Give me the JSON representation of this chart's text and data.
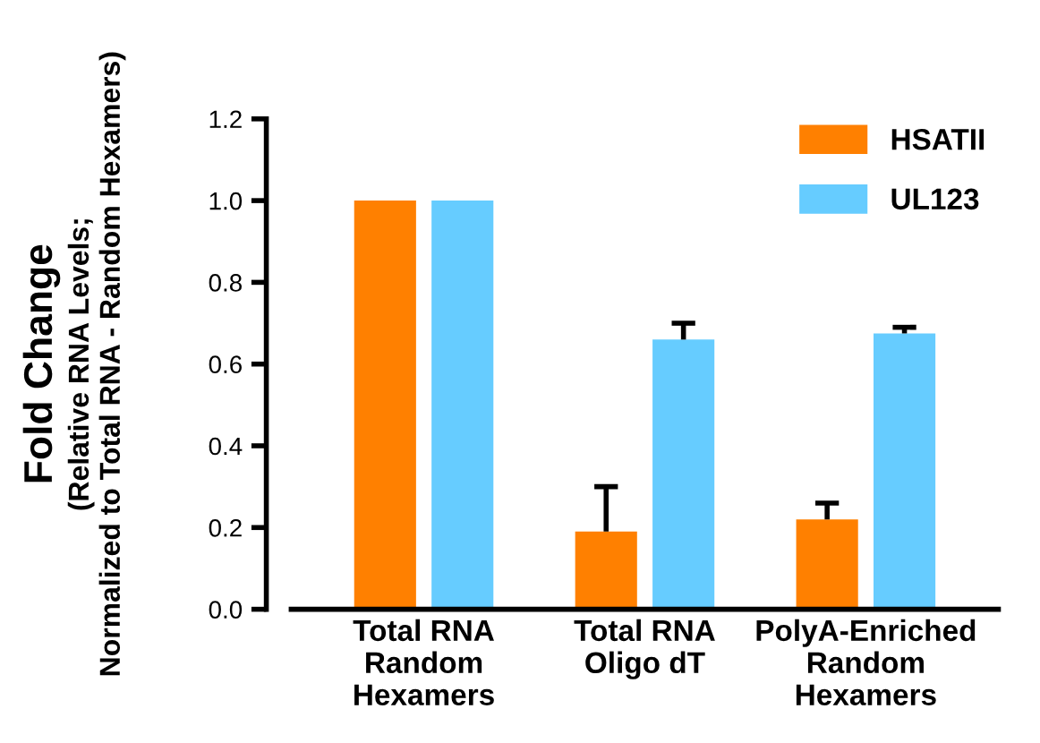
{
  "chart_data": {
    "type": "bar",
    "ylabel": "Fold Change\n(Relative RNA Levels;\nNormalized to Total RNA - Random Hexamers)",
    "categories": [
      "Total RNA\nRandom\nHexamers",
      "Total RNA\nOligo dT",
      "PolyA-Enriched\nRandom\nHexamers"
    ],
    "series": [
      {
        "name": "HSATII",
        "color": "#ff8000",
        "values": [
          1.0,
          0.19,
          0.22
        ],
        "errors": [
          null,
          [
            0.19,
            0.3
          ],
          [
            0.22,
            0.26
          ]
        ]
      },
      {
        "name": "UL123",
        "color": "#66ccff",
        "values": [
          1.0,
          0.66,
          0.675
        ],
        "errors": [
          null,
          [
            0.66,
            0.7
          ],
          [
            0.675,
            0.69
          ]
        ]
      }
    ],
    "ylim": [
      0,
      1.2
    ],
    "yticks": [
      {
        "value": 0,
        "label": "0.0"
      },
      {
        "value": 0.2,
        "label": "0.2"
      },
      {
        "value": 0.4,
        "label": "0.4"
      },
      {
        "value": 0.6,
        "label": "0.6"
      },
      {
        "value": 0.8,
        "label": "0.8"
      },
      {
        "value": 1.0,
        "label": "1.0"
      },
      {
        "value": 1.2,
        "label": "1.2"
      }
    ],
    "grid": false,
    "legend": "top right"
  }
}
